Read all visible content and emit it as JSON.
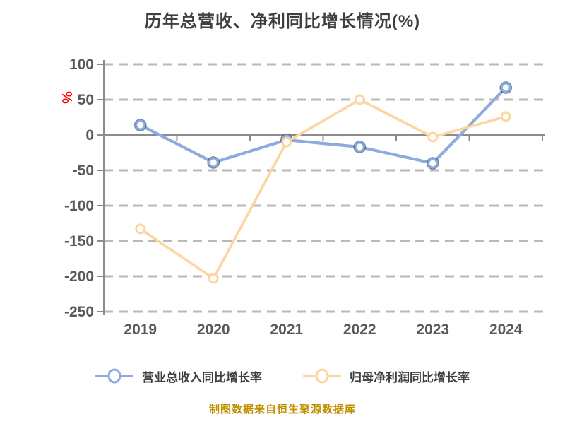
{
  "page": {
    "footer": "制图数据来自恒生聚源数据库"
  },
  "chart_data": {
    "type": "line",
    "title": "历年总营收、净利同比增长情况(%)",
    "categories": [
      "2019",
      "2020",
      "2021",
      "2022",
      "2023",
      "2024"
    ],
    "series": [
      {
        "name": "营业总收入同比增长率",
        "color": "#8faadc",
        "marker_border": "#31517e",
        "values": [
          14,
          -39,
          -7,
          -17,
          -40,
          67
        ]
      },
      {
        "name": "归母净利润同比增长率",
        "color": "#fcd5a2",
        "marker_border": null,
        "values": [
          -133,
          -203,
          -10,
          50,
          -3,
          26
        ]
      }
    ],
    "xlabel": "",
    "ylabel": "%",
    "ylabel_color": "#fe0000",
    "ylim": [
      -250,
      100
    ],
    "ytick_step": 50,
    "grid": "dashed horizontal, solid zero line",
    "legend_position": "bottom",
    "colors": {
      "gridline": "#b9b9b9",
      "axis": "#8c8c8c",
      "tick_label": "#595959",
      "title": "#3f3f3f",
      "footer": "#bf8f00"
    }
  }
}
